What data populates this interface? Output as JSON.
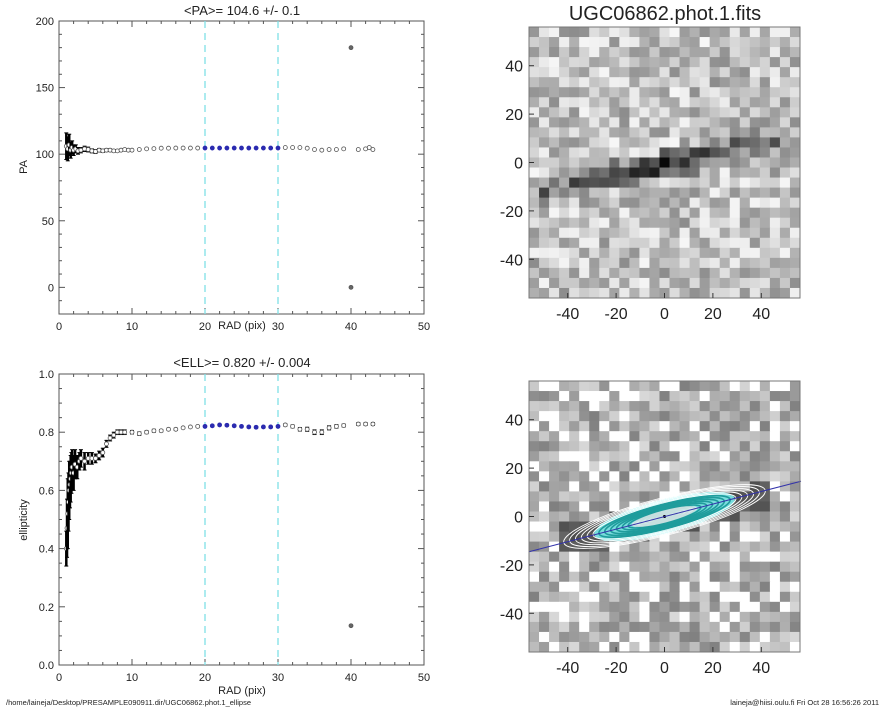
{
  "chart_data": [
    {
      "type": "scatter",
      "title": "<PA>= 104.6 +/-   0.1",
      "xlabel": "RAD (pix)",
      "ylabel": "PA",
      "xlim": [
        0,
        50
      ],
      "ylim": [
        -20,
        200
      ],
      "xticks": [
        0,
        10,
        20,
        30,
        40,
        50
      ],
      "yticks": [
        0,
        50,
        100,
        150,
        200
      ],
      "grid": false,
      "fit_range_markers": [
        20,
        30
      ],
      "colors": {
        "points": "#555555",
        "error_bars": "#000000",
        "fit_points": "#2b2bb0",
        "markers": "#7fe0e6"
      },
      "series": [
        {
          "x": [
            1,
            1.2,
            1.4,
            1.6,
            1.8,
            2,
            2.3,
            2.6,
            3,
            3.5,
            4,
            4.5,
            5,
            5.5,
            6,
            6.5,
            7,
            7.5,
            8,
            8.5,
            9,
            9.5,
            10,
            11,
            12,
            13,
            14,
            15,
            16,
            17,
            18,
            19,
            20,
            21,
            22,
            23,
            24,
            25,
            26,
            27,
            28,
            29,
            30,
            31,
            32,
            33,
            34,
            35,
            36,
            37,
            38,
            39,
            41,
            42,
            42.5,
            43,
            40,
            40
          ],
          "y": [
            106,
            104,
            107,
            103,
            105,
            103,
            104,
            102.5,
            103,
            104,
            103.5,
            102.5,
            102,
            103,
            102.5,
            103,
            103,
            102.5,
            102.5,
            103,
            103.5,
            103,
            103,
            103.5,
            104,
            104.2,
            104.5,
            104.5,
            104.6,
            104.6,
            104.6,
            104.6,
            104.6,
            104.6,
            104.6,
            104.6,
            104.6,
            104.6,
            104.6,
            104.6,
            104.6,
            104.6,
            104.6,
            105,
            105,
            105,
            104.5,
            103.5,
            103,
            103.5,
            103.5,
            104,
            103.5,
            104,
            105,
            103.5,
            180,
            0
          ],
          "err": [
            10,
            9,
            8,
            6,
            5,
            4,
            3,
            2.5,
            2,
            2,
            1.8,
            1.5,
            1.5,
            1.3,
            1.2,
            1.1,
            1,
            1,
            0.9,
            0.9,
            0.8,
            0.8,
            0.8,
            0.6,
            0.5,
            0.4,
            0.4,
            0.3,
            0.3,
            0.3,
            0.3,
            0.3,
            0.3,
            0.3,
            0.3,
            0.3,
            0.3,
            0.3,
            0.3,
            0.3,
            0.3,
            0.3,
            0.3,
            0.4,
            0.4,
            0.4,
            0.5,
            0.5,
            0.5,
            0.5,
            0.5,
            0.6,
            0.6,
            0.6,
            0.7,
            0.7,
            0,
            0
          ]
        }
      ]
    },
    {
      "type": "scatter",
      "title": "<ELL>= 0.820 +/-  0.004",
      "xlabel": "RAD (pix)",
      "ylabel": "ellipticity",
      "xlim": [
        0,
        50
      ],
      "ylim": [
        0,
        1
      ],
      "xticks": [
        0,
        10,
        20,
        30,
        40,
        50
      ],
      "yticks": [
        0.0,
        0.2,
        0.4,
        0.6,
        0.8,
        1.0
      ],
      "grid": false,
      "fit_range_markers": [
        20,
        30
      ],
      "colors": {
        "points": "#555555",
        "error_bars": "#000000",
        "fit_points": "#2b2bb0",
        "markers": "#7fe0e6"
      },
      "series": [
        {
          "x": [
            1,
            1.1,
            1.2,
            1.3,
            1.4,
            1.5,
            1.6,
            1.7,
            1.8,
            2,
            2.2,
            2.5,
            2.8,
            3,
            3.5,
            4,
            4.5,
            5,
            5.5,
            6,
            6.5,
            7,
            7.5,
            8,
            8.5,
            9,
            10,
            11,
            12,
            13,
            14,
            15,
            16,
            17,
            18,
            19,
            20,
            21,
            22,
            23,
            24,
            25,
            26,
            27,
            28,
            29,
            30,
            31,
            32,
            33,
            34,
            35,
            36,
            37,
            38,
            39,
            41,
            42,
            43,
            40
          ],
          "y": [
            0.4,
            0.47,
            0.52,
            0.56,
            0.6,
            0.62,
            0.64,
            0.66,
            0.68,
            0.66,
            0.69,
            0.68,
            0.7,
            0.71,
            0.7,
            0.71,
            0.71,
            0.71,
            0.72,
            0.73,
            0.76,
            0.78,
            0.79,
            0.8,
            0.8,
            0.8,
            0.8,
            0.795,
            0.8,
            0.805,
            0.805,
            0.81,
            0.81,
            0.815,
            0.818,
            0.82,
            0.82,
            0.822,
            0.825,
            0.824,
            0.822,
            0.82,
            0.818,
            0.817,
            0.818,
            0.818,
            0.82,
            0.825,
            0.82,
            0.81,
            0.81,
            0.8,
            0.8,
            0.815,
            0.82,
            0.823,
            0.828,
            0.828,
            0.828,
            0.135
          ],
          "err": [
            0.06,
            0.1,
            0.12,
            0.1,
            0.1,
            0.08,
            0.08,
            0.07,
            0.06,
            0.06,
            0.05,
            0.04,
            0.03,
            0.03,
            0.03,
            0.02,
            0.02,
            0.015,
            0.015,
            0.015,
            0.012,
            0.01,
            0.01,
            0.008,
            0.008,
            0.008,
            0.006,
            0.006,
            0.005,
            0.005,
            0.004,
            0.004,
            0.004,
            0.003,
            0.003,
            0.003,
            0.003,
            0.003,
            0.003,
            0.003,
            0.003,
            0.003,
            0.003,
            0.003,
            0.003,
            0.003,
            0.003,
            0.004,
            0.005,
            0.006,
            0.007,
            0.008,
            0.008,
            0.007,
            0.006,
            0.005,
            0.005,
            0.005,
            0.005,
            0
          ]
        }
      ]
    }
  ],
  "images": [
    {
      "title": "UGC06862.phot.1.fits",
      "xticks": [
        -40,
        -20,
        0,
        20,
        40
      ],
      "yticks": [
        -40,
        -20,
        0,
        20,
        40
      ],
      "xlim": [
        -56,
        56
      ],
      "ylim": [
        -56,
        56
      ]
    },
    {
      "title": "",
      "xticks": [
        -40,
        -20,
        0,
        20,
        40
      ],
      "yticks": [
        -40,
        -20,
        0,
        20,
        40
      ],
      "xlim": [
        -56,
        56
      ],
      "ylim": [
        -56,
        56
      ],
      "overlay": {
        "position_angle": 104.6,
        "ellipticity": 0.82,
        "max_radius": 43,
        "fit_range": [
          20,
          30
        ],
        "colors": {
          "inner_ellipses": "#1f9c9c",
          "outer_ellipses": "#ffffff",
          "glow": "#7ff5f5",
          "major_axis": "#3333aa"
        }
      }
    }
  ],
  "footer": {
    "path": "/home/laineja/Desktop/PRESAMPLE090911.dir/UGC06862.phot.1_ellipse",
    "stamp": "laineja@hiisi.oulu.fi  Fri Oct 28 16:56:26 2011"
  }
}
